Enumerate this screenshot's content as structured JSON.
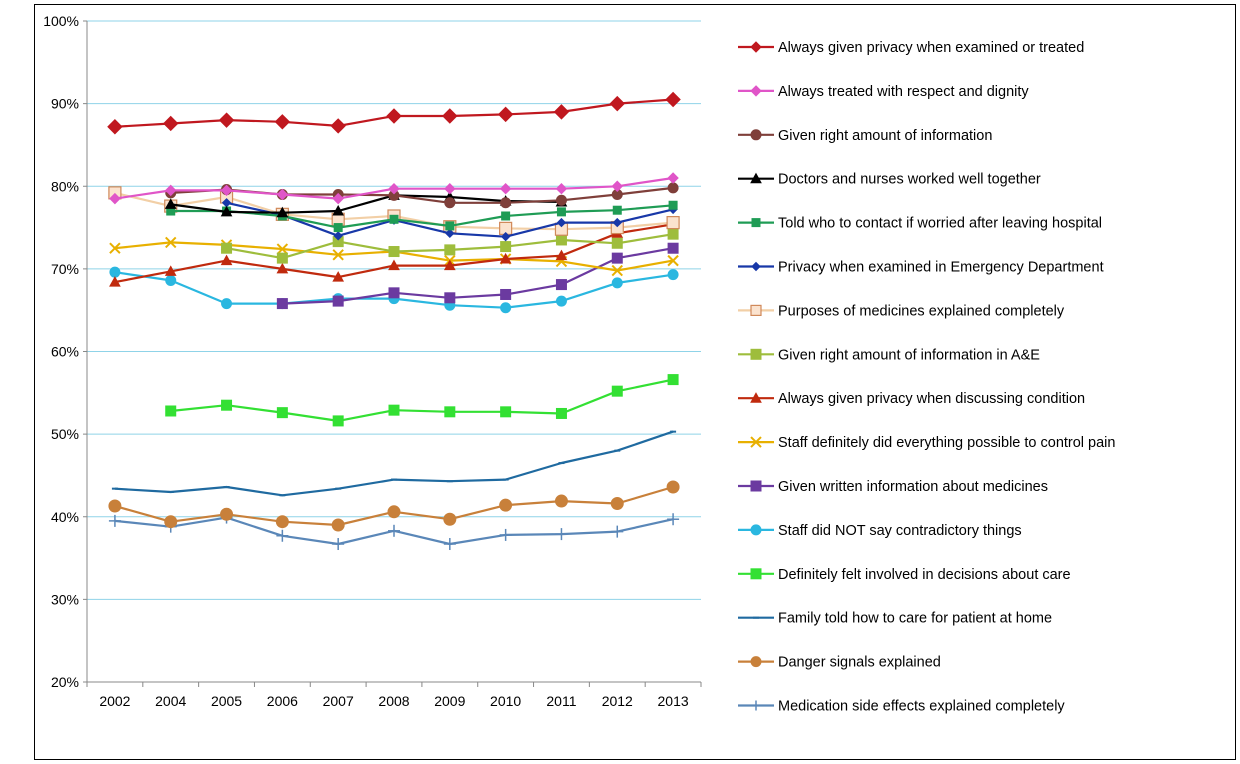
{
  "chart_data": {
    "type": "line",
    "title": "",
    "xlabel": "",
    "ylabel": "",
    "categories": [
      "2002",
      "2004",
      "2005",
      "2006",
      "2007",
      "2008",
      "2009",
      "2010",
      "2011",
      "2012",
      "2013"
    ],
    "ylim": [
      20,
      100
    ],
    "yticks": [
      "20%",
      "30%",
      "40%",
      "50%",
      "60%",
      "70%",
      "80%",
      "90%",
      "100%"
    ],
    "grid": "horizontal",
    "grid_color": "#8fd3e8",
    "legend_position": "right",
    "series": [
      {
        "name": "Always given privacy when examined or treated",
        "color": "#c0181f",
        "marker": "diamond",
        "size": 7,
        "values": [
          87.2,
          87.6,
          88.0,
          87.8,
          87.3,
          88.5,
          88.5,
          88.7,
          89.0,
          90.0,
          90.5
        ]
      },
      {
        "name": "Always treated with respect and dignity",
        "color": "#e055c8",
        "marker": "diamond",
        "size": 5,
        "values": [
          78.5,
          79.5,
          79.5,
          79.0,
          78.5,
          79.7,
          79.7,
          79.7,
          79.7,
          80.0,
          81.0
        ]
      },
      {
        "name": "Given right amount of information",
        "color": "#7f3f3a",
        "marker": "circle",
        "size": 5,
        "values": [
          null,
          79.2,
          79.6,
          79.0,
          79.0,
          78.9,
          78.0,
          78.0,
          78.3,
          79.0,
          79.8
        ]
      },
      {
        "name": "Doctors and nurses worked well together",
        "color": "#000000",
        "marker": "triangle",
        "size": 5,
        "values": [
          null,
          77.8,
          76.9,
          76.8,
          77.0,
          78.9,
          78.7,
          78.2,
          78.1,
          null,
          null
        ]
      },
      {
        "name": "Told who to contact if worried after leaving hospital",
        "color": "#1f9c55",
        "marker": "square",
        "size": 4,
        "values": [
          null,
          77.0,
          77.0,
          76.4,
          75.0,
          76.0,
          75.2,
          76.4,
          76.9,
          77.1,
          77.7
        ]
      },
      {
        "name": "Privacy when examined in Emergency Department",
        "color": "#1838a8",
        "marker": "diamond",
        "size": 4,
        "values": [
          null,
          null,
          78.0,
          76.5,
          74.0,
          75.9,
          74.3,
          73.9,
          75.6,
          75.6,
          77.2
        ]
      },
      {
        "name": "Purposes of medicines explained completely",
        "color": "#f4c89a",
        "marker": "hollow-square",
        "size": 6,
        "values": [
          79.2,
          77.6,
          78.7,
          76.6,
          76.0,
          76.4,
          75.1,
          74.9,
          74.8,
          75.0,
          75.6
        ]
      },
      {
        "name": "Given right amount of information in A&E",
        "color": "#9ebd3c",
        "marker": "square",
        "size": 5,
        "values": [
          null,
          null,
          72.5,
          71.3,
          73.3,
          72.1,
          72.3,
          72.7,
          73.5,
          73.1,
          74.2
        ]
      },
      {
        "name": "Always given privacy when discussing condition",
        "color": "#c02a0e",
        "marker": "triangle",
        "size": 5,
        "values": [
          68.4,
          69.7,
          71.0,
          70.0,
          69.0,
          70.4,
          70.4,
          71.2,
          71.6,
          74.3,
          75.4
        ]
      },
      {
        "name": "Staff definitely did everything possible to control pain",
        "color": "#e8b000",
        "marker": "x",
        "size": 5,
        "values": [
          72.5,
          73.2,
          72.9,
          72.4,
          71.7,
          72.1,
          71.0,
          71.2,
          70.9,
          69.8,
          71.0
        ]
      },
      {
        "name": "Given written information about medicines",
        "color": "#6b3aa0",
        "marker": "square",
        "size": 5,
        "values": [
          null,
          null,
          null,
          65.8,
          66.1,
          67.1,
          66.5,
          66.9,
          68.1,
          71.3,
          72.5
        ]
      },
      {
        "name": "Staff did NOT say contradictory things",
        "color": "#2ab7e0",
        "marker": "circle",
        "size": 5,
        "values": [
          69.6,
          68.6,
          65.8,
          65.8,
          66.4,
          66.4,
          65.6,
          65.3,
          66.1,
          68.3,
          69.3
        ]
      },
      {
        "name": "Definitely felt involved in decisions about care",
        "color": "#33e033",
        "marker": "square",
        "size": 5,
        "values": [
          null,
          52.8,
          53.5,
          52.6,
          51.6,
          52.9,
          52.7,
          52.7,
          52.5,
          55.2,
          56.6
        ]
      },
      {
        "name": "Family told how to care for patient at home",
        "color": "#1f6aa0",
        "marker": "dash",
        "size": 3,
        "values": [
          43.4,
          43.0,
          43.6,
          42.6,
          43.4,
          44.5,
          44.3,
          44.5,
          46.5,
          48.0,
          50.3
        ]
      },
      {
        "name": "Danger signals explained",
        "color": "#c8803a",
        "marker": "circle",
        "size": 6,
        "values": [
          41.3,
          39.4,
          40.3,
          39.4,
          39.0,
          40.6,
          39.7,
          41.4,
          41.9,
          41.6,
          43.6
        ]
      },
      {
        "name": "Medication side effects explained completely",
        "color": "#5a87b8",
        "marker": "plus",
        "size": 6,
        "values": [
          39.5,
          38.8,
          39.9,
          37.7,
          36.7,
          38.3,
          36.7,
          37.8,
          37.9,
          38.2,
          39.7
        ]
      }
    ]
  }
}
